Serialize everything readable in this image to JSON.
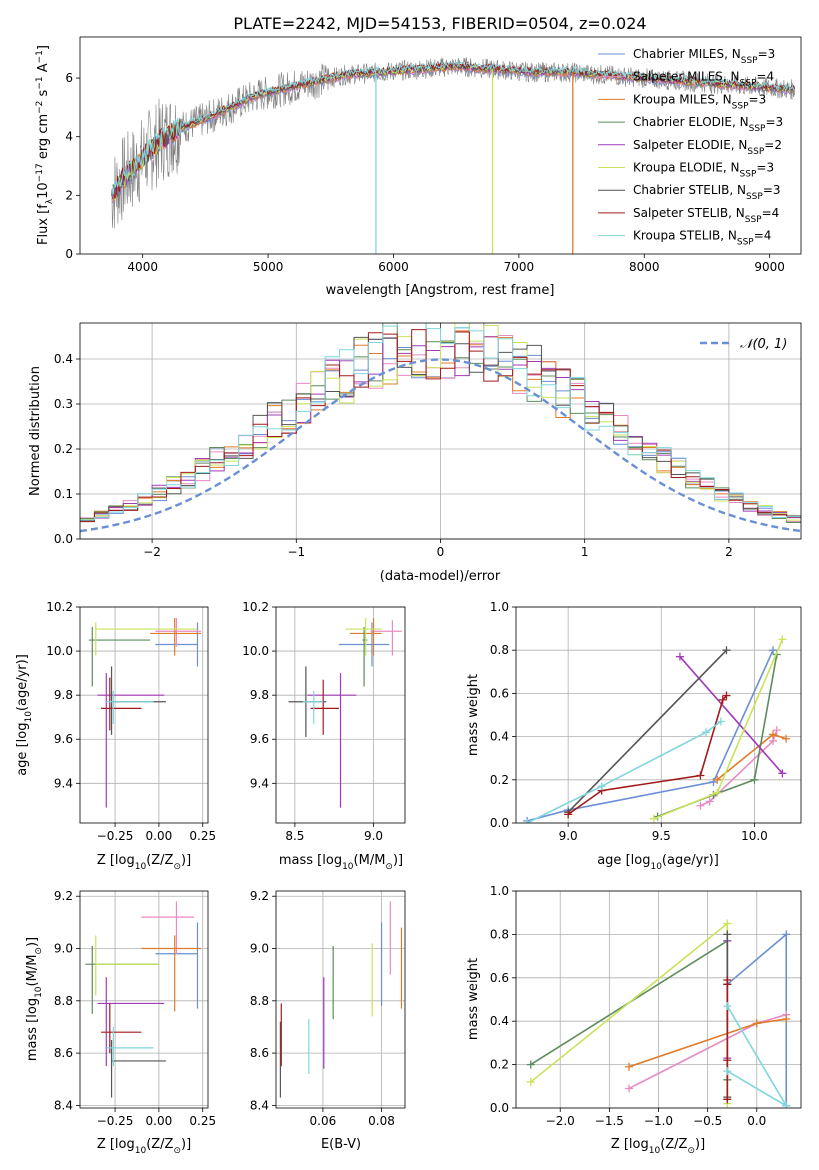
{
  "figure_title": "PLATE=2242, MJD=54153, FIBERID=0504, z=0.024",
  "legend_models": [
    {
      "name": "Chabrier MILES, N",
      "sub": "SSP",
      "suffix": "=3",
      "color": "#6a8fd4"
    },
    {
      "name": "Salpeter MILES, N",
      "sub": "SSP",
      "suffix": "=4",
      "color": "#e88bc3"
    },
    {
      "name": "Kroupa MILES, N",
      "sub": "SSP",
      "suffix": "=3",
      "color": "#e07b2a"
    },
    {
      "name": "Chabrier ELODIE, N",
      "sub": "SSP",
      "suffix": "=3",
      "color": "#5c8c5c"
    },
    {
      "name": "Salpeter ELODIE, N",
      "sub": "SSP",
      "suffix": "=2",
      "color": "#a33ab8"
    },
    {
      "name": "Kroupa ELODIE, N",
      "sub": "SSP",
      "suffix": "=3",
      "color": "#c9e35a"
    },
    {
      "name": "Chabrier STELIB, N",
      "sub": "SSP",
      "suffix": "=3",
      "color": "#555555"
    },
    {
      "name": "Salpeter STELIB, N",
      "sub": "SSP",
      "suffix": "=4",
      "color": "#a31a1a"
    },
    {
      "name": "Kroupa STELIB, N",
      "sub": "SSP",
      "suffix": "=4",
      "color": "#7fd6dc"
    }
  ],
  "chart_data": [
    {
      "id": "spectrum",
      "type": "line",
      "xlabel": "wavelength [Angstrom, rest frame]",
      "ylabel_prefix": "Flux [f",
      "ylabel_sub": "λ",
      "ylabel_mid": "10",
      "ylabel_sup1": "−17",
      "ylabel_mid2": " erg cm",
      "ylabel_sup2": "−2",
      "ylabel_mid3": " s",
      "ylabel_sup3": "−1",
      "ylabel_end": " A",
      "ylabel_sup4": "−1",
      "ylabel_close": "]",
      "xlim": [
        3500,
        9250
      ],
      "ylim": [
        0,
        7.4
      ],
      "xticks": [
        "4000",
        "5000",
        "6000",
        "7000",
        "8000",
        "9000"
      ],
      "xtick_values": [
        4000,
        5000,
        6000,
        7000,
        8000,
        9000
      ],
      "yticks": [
        "0",
        "2",
        "4",
        "6"
      ],
      "ytick_values": [
        0,
        2,
        4,
        6
      ],
      "data_color": "#808080",
      "continuum": [
        [
          3750,
          2.0
        ],
        [
          3850,
          2.6
        ],
        [
          3950,
          3.0
        ],
        [
          4050,
          3.5
        ],
        [
          4150,
          3.9
        ],
        [
          4300,
          4.3
        ],
        [
          4500,
          4.6
        ],
        [
          4700,
          5.0
        ],
        [
          4900,
          5.4
        ],
        [
          5100,
          5.6
        ],
        [
          5300,
          5.8
        ],
        [
          5600,
          6.1
        ],
        [
          5900,
          6.2
        ],
        [
          6200,
          6.3
        ],
        [
          6500,
          6.4
        ],
        [
          6800,
          6.3
        ],
        [
          7100,
          6.2
        ],
        [
          7400,
          6.2
        ],
        [
          7700,
          6.1
        ],
        [
          8000,
          6.0
        ],
        [
          8300,
          5.9
        ],
        [
          8600,
          5.8
        ],
        [
          8900,
          5.7
        ],
        [
          9200,
          5.6
        ]
      ],
      "dips": [
        {
          "x": 5860,
          "color": "#7fd6dc"
        },
        {
          "x": 6790,
          "color": "#c9e35a"
        },
        {
          "x": 7430,
          "color": "#e07b2a"
        }
      ]
    },
    {
      "id": "residuals",
      "type": "histogram",
      "xlabel": "(data-model)/error",
      "ylabel": "Normed distribution",
      "xlim": [
        -2.5,
        2.5
      ],
      "ylim": [
        0,
        0.48
      ],
      "xticks": [
        "−2",
        "−1",
        "0",
        "1",
        "2"
      ],
      "xtick_values": [
        -2,
        -1,
        0,
        1,
        2
      ],
      "yticks": [
        "0.0",
        "0.1",
        "0.2",
        "0.3",
        "0.4"
      ],
      "ytick_values": [
        0,
        0.1,
        0.2,
        0.3,
        0.4
      ],
      "legend_label": "𝒩(0, 1)",
      "gaussian_color": "#6a8fd4",
      "bin_width": 0.1
    },
    {
      "id": "age-vs-Z",
      "type": "errorbar",
      "xlabel": "Z [log",
      "xlabel_sub": "10",
      "xlabel_rest": "(Z/Z",
      "xlabel_sub2": "⊙",
      "xlabel_end": ")]",
      "ylabel": "age  [log",
      "ylabel_sub": "10",
      "ylabel_rest": "(age/yr)]",
      "xlim": [
        -0.45,
        0.28
      ],
      "ylim": [
        9.22,
        10.2
      ],
      "xticks": [
        "−0.25",
        "0.00",
        "0.25"
      ],
      "xtick_values": [
        -0.25,
        0.0,
        0.25
      ],
      "yticks": [
        "9.4",
        "9.6",
        "9.8",
        "10.0",
        "10.2"
      ],
      "ytick_values": [
        9.4,
        9.6,
        9.8,
        10.0,
        10.2
      ],
      "points": [
        {
          "x": 0.22,
          "y": 10.03,
          "xerr": [
            -0.0,
            0.0
          ],
          "xlo": -0.02,
          "xhi": 0.22,
          "ylo": 9.93,
          "yhi": 10.13,
          "color": "#6a8fd4"
        },
        {
          "x": 0.1,
          "y": 10.09,
          "xlo": -0.02,
          "xhi": 0.24,
          "ylo": 10.02,
          "yhi": 10.15,
          "color": "#e88bc3"
        },
        {
          "x": 0.09,
          "y": 10.08,
          "xlo": -0.05,
          "xhi": 0.24,
          "ylo": 9.98,
          "yhi": 10.15,
          "color": "#e07b2a"
        },
        {
          "x": -0.38,
          "y": 10.05,
          "xlo": -0.4,
          "xhi": -0.05,
          "ylo": 9.84,
          "yhi": 10.11,
          "color": "#5c8c5c"
        },
        {
          "x": -0.3,
          "y": 9.8,
          "xlo": -0.35,
          "xhi": 0.03,
          "ylo": 9.29,
          "yhi": 9.9,
          "color": "#a33ab8"
        },
        {
          "x": -0.36,
          "y": 10.1,
          "xlo": -0.36,
          "xhi": 0.22,
          "ylo": 9.98,
          "yhi": 10.13,
          "color": "#c9e35a"
        },
        {
          "x": -0.27,
          "y": 9.77,
          "xlo": -0.27,
          "xhi": 0.04,
          "ylo": 9.62,
          "yhi": 9.93,
          "color": "#555555"
        },
        {
          "x": -0.28,
          "y": 9.74,
          "xlo": -0.33,
          "xhi": -0.1,
          "ylo": 9.64,
          "yhi": 9.88,
          "color": "#a31a1a"
        },
        {
          "x": -0.26,
          "y": 9.77,
          "xlo": -0.3,
          "xhi": -0.03,
          "ylo": 9.67,
          "yhi": 9.82,
          "color": "#7fd6dc"
        }
      ]
    },
    {
      "id": "age-vs-mass",
      "type": "errorbar",
      "xlabel": "mass [log",
      "xlabel_sub": "10",
      "xlabel_rest": "(M/M",
      "xlabel_sub2": "⊙",
      "xlabel_end": ")]",
      "xlim": [
        8.38,
        9.2
      ],
      "ylim": [
        9.22,
        10.2
      ],
      "xticks": [
        "8.5",
        "9.0"
      ],
      "xtick_values": [
        8.5,
        9.0
      ],
      "yticks": [
        "9.4",
        "9.6",
        "9.8",
        "10.0",
        "10.2"
      ],
      "ytick_values": [
        9.4,
        9.6,
        9.8,
        10.0,
        10.2
      ],
      "points": [
        {
          "x": 8.99,
          "y": 10.03,
          "xlo": 8.78,
          "xhi": 9.1,
          "ylo": 9.93,
          "yhi": 10.13,
          "color": "#6a8fd4"
        },
        {
          "x": 9.12,
          "y": 10.09,
          "xlo": 8.98,
          "xhi": 9.18,
          "ylo": 9.98,
          "yhi": 10.14,
          "color": "#e88bc3"
        },
        {
          "x": 9.0,
          "y": 10.08,
          "xlo": 8.85,
          "xhi": 9.05,
          "ylo": 9.98,
          "yhi": 10.15,
          "color": "#e07b2a"
        },
        {
          "x": 8.94,
          "y": 10.05,
          "xlo": 8.93,
          "xhi": 8.96,
          "ylo": 9.84,
          "yhi": 10.11,
          "color": "#5c8c5c"
        },
        {
          "x": 8.79,
          "y": 9.8,
          "xlo": 8.58,
          "xhi": 8.89,
          "ylo": 9.29,
          "yhi": 9.9,
          "color": "#a33ab8"
        },
        {
          "x": 8.95,
          "y": 10.1,
          "xlo": 8.82,
          "xhi": 9.05,
          "ylo": 9.98,
          "yhi": 10.15,
          "color": "#c9e35a"
        },
        {
          "x": 8.57,
          "y": 9.77,
          "xlo": 8.46,
          "xhi": 8.7,
          "ylo": 9.61,
          "yhi": 9.93,
          "color": "#555555"
        },
        {
          "x": 8.68,
          "y": 9.74,
          "xlo": 8.6,
          "xhi": 8.78,
          "ylo": 9.62,
          "yhi": 9.87,
          "color": "#a31a1a"
        },
        {
          "x": 8.62,
          "y": 9.77,
          "xlo": 8.55,
          "xhi": 8.68,
          "ylo": 9.67,
          "yhi": 9.82,
          "color": "#7fd6dc"
        }
      ]
    },
    {
      "id": "weight-vs-age",
      "type": "line",
      "xlabel": "age  [log",
      "xlabel_sub": "10",
      "xlabel_rest": "(age/yr)]",
      "ylabel": "mass weight",
      "xlim": [
        8.72,
        10.25
      ],
      "ylim": [
        0,
        1.0
      ],
      "xticks": [
        "9.0",
        "9.5",
        "10.0"
      ],
      "xtick_values": [
        9.0,
        9.5,
        10.0
      ],
      "yticks": [
        "0.0",
        "0.2",
        "0.4",
        "0.6",
        "0.8",
        "1.0"
      ],
      "ytick_values": [
        0,
        0.2,
        0.4,
        0.6,
        0.8,
        1.0
      ],
      "series": [
        {
          "color": "#6a8fd4",
          "x": [
            8.78,
            9.0,
            9.78,
            10.1
          ],
          "y": [
            0.01,
            0.06,
            0.19,
            0.8
          ]
        },
        {
          "color": "#e88bc3",
          "x": [
            9.71,
            9.76,
            10.1,
            10.12
          ],
          "y": [
            0.08,
            0.1,
            0.38,
            0.43
          ]
        },
        {
          "color": "#e07b2a",
          "x": [
            9.8,
            10.1,
            10.17
          ],
          "y": [
            0.2,
            0.41,
            0.39
          ]
        },
        {
          "color": "#5c8c5c",
          "x": [
            9.48,
            9.78,
            10.0,
            10.12
          ],
          "y": [
            0.03,
            0.13,
            0.2,
            0.78
          ]
        },
        {
          "color": "#a33ab8",
          "x": [
            9.6,
            10.15
          ],
          "y": [
            0.77,
            0.23
          ]
        },
        {
          "color": "#c9e35a",
          "x": [
            9.46,
            9.8,
            10.15
          ],
          "y": [
            0.02,
            0.14,
            0.85
          ]
        },
        {
          "color": "#555555",
          "x": [
            9.0,
            9.85
          ],
          "y": [
            0.05,
            0.8
          ]
        },
        {
          "color": "#a31a1a",
          "x": [
            9.0,
            9.18,
            9.71,
            9.83,
            9.85
          ],
          "y": [
            0.04,
            0.15,
            0.22,
            0.57,
            0.59
          ]
        },
        {
          "color": "#7fd6dc",
          "x": [
            8.78,
            9.18,
            9.74,
            9.82
          ],
          "y": [
            0.0,
            0.17,
            0.42,
            0.47
          ]
        }
      ]
    },
    {
      "id": "mass-vs-Z",
      "type": "errorbar",
      "xlabel": "Z [log",
      "xlabel_sub": "10",
      "xlabel_rest": "(Z/Z",
      "xlabel_sub2": "⊙",
      "xlabel_end": ")]",
      "ylabel": "mass [log",
      "ylabel_sub": "10",
      "ylabel_rest": "(M/M",
      "ylabel_sub2": "⊙",
      "ylabel_end": ")]",
      "xlim": [
        -0.45,
        0.28
      ],
      "ylim": [
        8.39,
        9.22
      ],
      "xticks": [
        "−0.25",
        "0.00",
        "0.25"
      ],
      "xtick_values": [
        -0.25,
        0.0,
        0.25
      ],
      "yticks": [
        "8.4",
        "8.6",
        "8.8",
        "9.0",
        "9.2"
      ],
      "ytick_values": [
        8.4,
        8.6,
        8.8,
        9.0,
        9.2
      ],
      "points": [
        {
          "x": 0.22,
          "y": 8.98,
          "xlo": -0.02,
          "xhi": 0.22,
          "ylo": 8.77,
          "yhi": 9.1,
          "color": "#6a8fd4"
        },
        {
          "x": 0.1,
          "y": 9.12,
          "xlo": -0.1,
          "xhi": 0.2,
          "ylo": 8.98,
          "yhi": 9.18,
          "color": "#e88bc3"
        },
        {
          "x": 0.09,
          "y": 9.0,
          "xlo": -0.1,
          "xhi": 0.24,
          "ylo": 8.76,
          "yhi": 9.05,
          "color": "#e07b2a"
        },
        {
          "x": -0.38,
          "y": 8.94,
          "xlo": -0.42,
          "xhi": 0.0,
          "ylo": 8.75,
          "yhi": 9.01,
          "color": "#5c8c5c"
        },
        {
          "x": -0.3,
          "y": 8.79,
          "xlo": -0.35,
          "xhi": 0.03,
          "ylo": 8.55,
          "yhi": 8.89,
          "color": "#a33ab8"
        },
        {
          "x": -0.36,
          "y": 8.94,
          "xlo": -0.36,
          "xhi": 0.0,
          "ylo": 8.82,
          "yhi": 9.05,
          "color": "#c9e35a"
        },
        {
          "x": -0.27,
          "y": 8.57,
          "xlo": -0.27,
          "xhi": 0.04,
          "ylo": 8.43,
          "yhi": 8.65,
          "color": "#555555"
        },
        {
          "x": -0.28,
          "y": 8.68,
          "xlo": -0.33,
          "xhi": -0.1,
          "ylo": 8.6,
          "yhi": 8.79,
          "color": "#a31a1a"
        },
        {
          "x": -0.26,
          "y": 8.62,
          "xlo": -0.3,
          "xhi": -0.03,
          "ylo": 8.55,
          "yhi": 8.7,
          "color": "#7fd6dc"
        }
      ]
    },
    {
      "id": "mass-vs-ebv",
      "type": "errorbar",
      "xlabel": "E(B-V)",
      "xlim": [
        0.044,
        0.088
      ],
      "ylim": [
        8.39,
        9.22
      ],
      "xticks": [
        "0.06",
        "0.08"
      ],
      "xtick_values": [
        0.06,
        0.08
      ],
      "yticks": [
        "8.4",
        "8.6",
        "8.8",
        "9.0",
        "9.2"
      ],
      "ytick_values": [
        8.4,
        8.6,
        8.8,
        9.0,
        9.2
      ],
      "points": [
        {
          "x": 0.08,
          "y": 8.98,
          "ylo": 8.78,
          "yhi": 9.1,
          "color": "#6a8fd4"
        },
        {
          "x": 0.083,
          "y": 9.05,
          "ylo": 8.9,
          "yhi": 9.18,
          "color": "#e88bc3"
        },
        {
          "x": 0.0868,
          "y": 8.92,
          "ylo": 8.77,
          "yhi": 9.08,
          "color": "#e07b2a"
        },
        {
          "x": 0.0635,
          "y": 8.87,
          "ylo": 8.73,
          "yhi": 9.01,
          "color": "#5c8c5c"
        },
        {
          "x": 0.0603,
          "y": 8.71,
          "ylo": 8.54,
          "yhi": 8.89,
          "color": "#a33ab8"
        },
        {
          "x": 0.0768,
          "y": 8.88,
          "ylo": 8.74,
          "yhi": 9.02,
          "color": "#c9e35a"
        },
        {
          "x": 0.0455,
          "y": 8.58,
          "ylo": 8.43,
          "yhi": 8.72,
          "color": "#555555"
        },
        {
          "x": 0.0458,
          "y": 8.66,
          "ylo": 8.55,
          "yhi": 8.79,
          "color": "#a31a1a"
        },
        {
          "x": 0.0552,
          "y": 8.62,
          "ylo": 8.52,
          "yhi": 8.73,
          "color": "#7fd6dc"
        }
      ]
    },
    {
      "id": "weight-vs-Z",
      "type": "line",
      "xlabel": "Z [log",
      "xlabel_sub": "10",
      "xlabel_rest": "(Z/Z",
      "xlabel_sub2": "⊙",
      "xlabel_end": ")]",
      "ylabel": "mass weight",
      "xlim": [
        -2.45,
        0.45
      ],
      "ylim": [
        0,
        1.0
      ],
      "xticks": [
        "−2.0",
        "−1.5",
        "−1.0",
        "−0.5",
        "0.0"
      ],
      "xtick_values": [
        -2.0,
        -1.5,
        -1.0,
        -0.5,
        0.0
      ],
      "yticks": [
        "0.0",
        "0.2",
        "0.4",
        "0.6",
        "0.8",
        "1.0"
      ],
      "ytick_values": [
        0,
        0.2,
        0.4,
        0.6,
        0.8,
        1.0
      ],
      "series": [
        {
          "color": "#6a8fd4",
          "x": [
            -0.3,
            0.3,
            0.3
          ],
          "y": [
            0.57,
            0.8,
            0.01
          ]
        },
        {
          "color": "#e88bc3",
          "x": [
            -1.3,
            0.0,
            0.3
          ],
          "y": [
            0.09,
            0.39,
            0.43
          ]
        },
        {
          "color": "#e07b2a",
          "x": [
            -1.3,
            0.0,
            0.3
          ],
          "y": [
            0.19,
            0.39,
            0.41
          ]
        },
        {
          "color": "#5c8c5c",
          "x": [
            -2.3,
            -0.3,
            -0.3
          ],
          "y": [
            0.2,
            0.77,
            0.13
          ]
        },
        {
          "color": "#a33ab8",
          "x": [
            -0.3,
            -0.3
          ],
          "y": [
            0.77,
            0.23
          ]
        },
        {
          "color": "#c9e35a",
          "x": [
            -2.3,
            -0.3,
            -0.3
          ],
          "y": [
            0.12,
            0.85,
            0.02
          ]
        },
        {
          "color": "#555555",
          "x": [
            -0.3,
            -0.3
          ],
          "y": [
            0.8,
            0.05
          ]
        },
        {
          "color": "#a31a1a",
          "x": [
            -0.3,
            -0.3,
            -0.3,
            -0.3
          ],
          "y": [
            0.59,
            0.57,
            0.22,
            0.04
          ]
        },
        {
          "color": "#7fd6dc",
          "x": [
            -0.3,
            0.3,
            -0.3
          ],
          "y": [
            0.47,
            0.01,
            0.17
          ]
        }
      ]
    }
  ]
}
